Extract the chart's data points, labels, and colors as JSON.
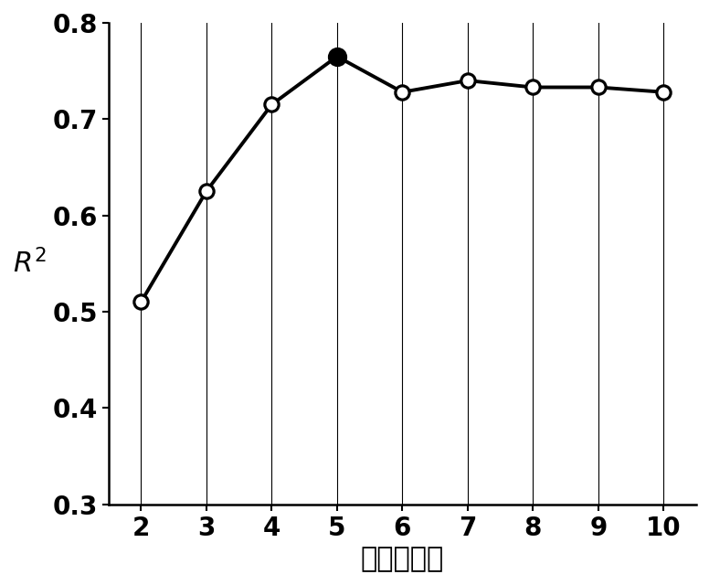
{
  "x": [
    2,
    3,
    4,
    5,
    6,
    7,
    8,
    9,
    10
  ],
  "y": [
    0.51,
    0.625,
    0.715,
    0.765,
    0.728,
    0.74,
    0.733,
    0.733,
    0.728
  ],
  "filled_index": 3,
  "line_color": "#000000",
  "line_width": 2.8,
  "open_marker_size": 11,
  "filled_marker_size": 13,
  "open_marker_facecolor": "#ffffff",
  "filled_marker_facecolor": "#000000",
  "marker_edgecolor": "#000000",
  "marker_edgewidth": 2.3,
  "xlabel": "主成分个数",
  "xlim": [
    1.5,
    10.5
  ],
  "ylim": [
    0.3,
    0.8
  ],
  "xticks": [
    2,
    3,
    4,
    5,
    6,
    7,
    8,
    9,
    10
  ],
  "yticks": [
    0.3,
    0.4,
    0.5,
    0.6,
    0.7,
    0.8
  ],
  "background_color": "#ffffff",
  "xlabel_fontsize": 22,
  "ylabel_fontsize": 22,
  "tick_fontsize": 20,
  "figsize": [
    7.76,
    6.4
  ],
  "dpi": 100
}
